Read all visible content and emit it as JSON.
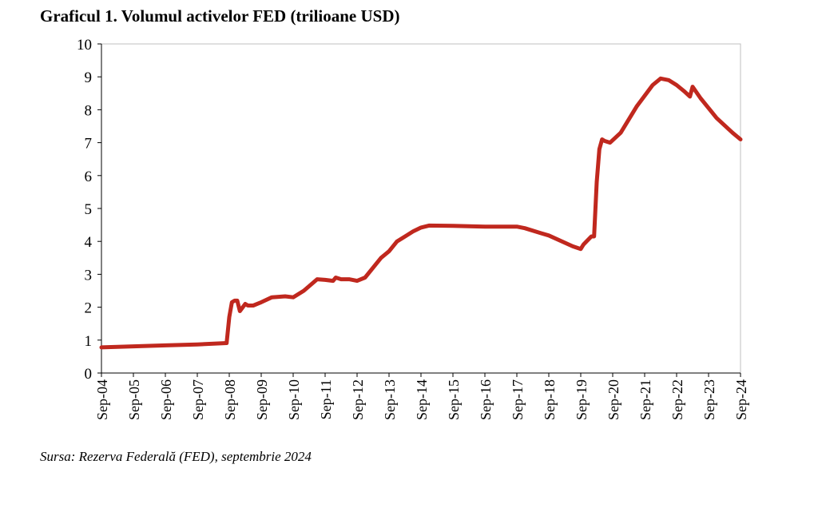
{
  "title": "Graficul 1. Volumul activelor FED (trilioane USD)",
  "source": "Sursa: Rezerva Federală (FED), septembrie 2024",
  "colors": {
    "line": "#C0281E",
    "axis": "#000000",
    "frame": "#BFBFBF"
  },
  "chart_data": {
    "type": "line",
    "title": "Graficul 1. Volumul activelor FED (trilioane USD)",
    "xlabel": "",
    "ylabel": "",
    "ylim": [
      0,
      10
    ],
    "yticks": [
      0,
      1,
      2,
      3,
      4,
      5,
      6,
      7,
      8,
      9,
      10
    ],
    "xlim": [
      "Sep-04",
      "Sep-24"
    ],
    "xticks": [
      "Sep-04",
      "Sep-05",
      "Sep-06",
      "Sep-07",
      "Sep-08",
      "Sep-09",
      "Sep-10",
      "Sep-11",
      "Sep-12",
      "Sep-13",
      "Sep-14",
      "Sep-15",
      "Sep-16",
      "Sep-17",
      "Sep-18",
      "Sep-19",
      "Sep-20",
      "Sep-21",
      "Sep-22",
      "Sep-23",
      "Sep-24"
    ],
    "grid": false,
    "legend": "none",
    "series": [
      {
        "x": [
          "Sep-04",
          "Sep-05",
          "Sep-06",
          "Sep-07",
          "Aug-08",
          "Sep-08",
          "Oct-08",
          "Nov-08",
          "Dec-08",
          "Jan-09",
          "Mar-09",
          "Apr-09",
          "Jun-09",
          "Sep-09",
          "Jan-10",
          "Jun-10",
          "Sep-10",
          "Jan-11",
          "Jun-11",
          "Sep-11",
          "Dec-11",
          "Jan-12",
          "Mar-12",
          "Jun-12",
          "Sep-12",
          "Dec-12",
          "Jun-13",
          "Sep-13",
          "Dec-13",
          "Jun-14",
          "Sep-14",
          "Dec-14",
          "Sep-15",
          "Sep-16",
          "Sep-17",
          "Dec-17",
          "Jun-18",
          "Sep-18",
          "Jun-19",
          "Sep-19",
          "Oct-19",
          "Jan-20",
          "Feb-20",
          "Mar-20",
          "Apr-20",
          "May-20",
          "Jun-20",
          "Aug-20",
          "Dec-20",
          "Jun-21",
          "Dec-21",
          "Mar-22",
          "Jun-22",
          "Sep-22",
          "Dec-22",
          "Feb-23",
          "Mar-23",
          "Jun-23",
          "Sep-23",
          "Dec-23",
          "Jun-24",
          "Sep-24"
        ],
        "values": [
          0.78,
          0.81,
          0.84,
          0.87,
          0.91,
          1.7,
          2.15,
          2.2,
          2.2,
          1.88,
          2.1,
          2.05,
          2.05,
          2.15,
          2.3,
          2.33,
          2.3,
          2.5,
          2.85,
          2.83,
          2.8,
          2.9,
          2.85,
          2.85,
          2.8,
          2.9,
          3.5,
          3.7,
          4.0,
          4.3,
          4.42,
          4.48,
          4.47,
          4.45,
          4.45,
          4.4,
          4.25,
          4.18,
          3.85,
          3.77,
          3.9,
          4.15,
          4.15,
          5.8,
          6.8,
          7.1,
          7.05,
          7.0,
          7.3,
          8.1,
          8.75,
          8.95,
          8.9,
          8.75,
          8.55,
          8.4,
          8.7,
          8.35,
          8.05,
          7.75,
          7.3,
          7.1
        ]
      }
    ]
  }
}
